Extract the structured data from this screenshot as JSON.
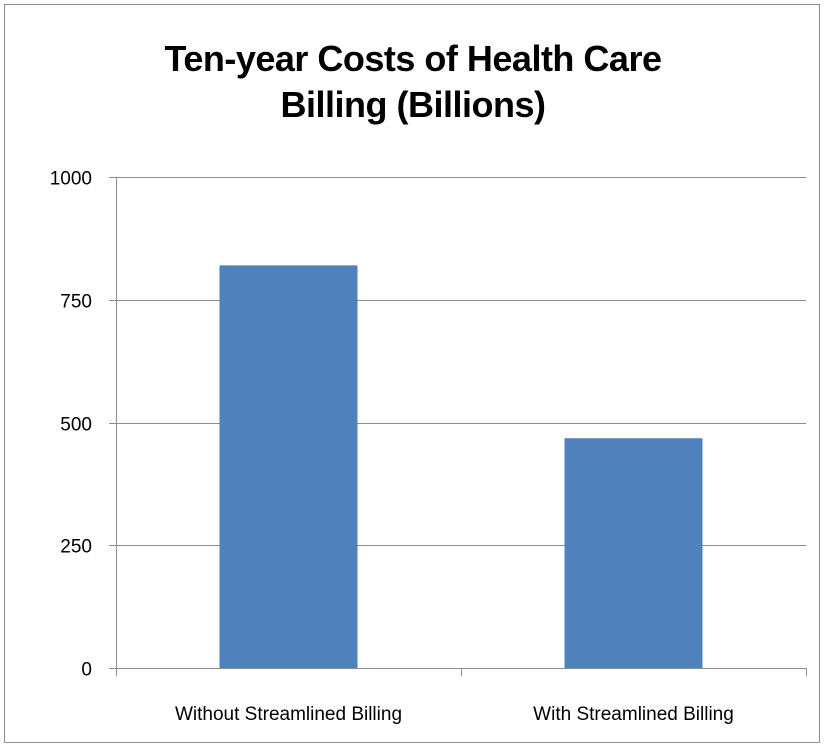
{
  "chart_data": {
    "type": "bar",
    "title": "Ten-year Costs of Health Care Billing (Billions)",
    "xlabel": "",
    "ylabel": "",
    "categories": [
      "Without Streamlined Billing",
      "With Streamlined Billing"
    ],
    "values": [
      820,
      468
    ],
    "ylim": [
      0,
      1000
    ],
    "yticks": [
      "0",
      "250",
      "500",
      "750",
      "1000"
    ],
    "ytick_values": [
      0,
      250,
      500,
      750,
      1000
    ],
    "grid": true,
    "legend": "none",
    "colors": {
      "bar": "#4f81bd",
      "grid": "#8c8c8c",
      "axis": "#8c8c8c"
    }
  }
}
